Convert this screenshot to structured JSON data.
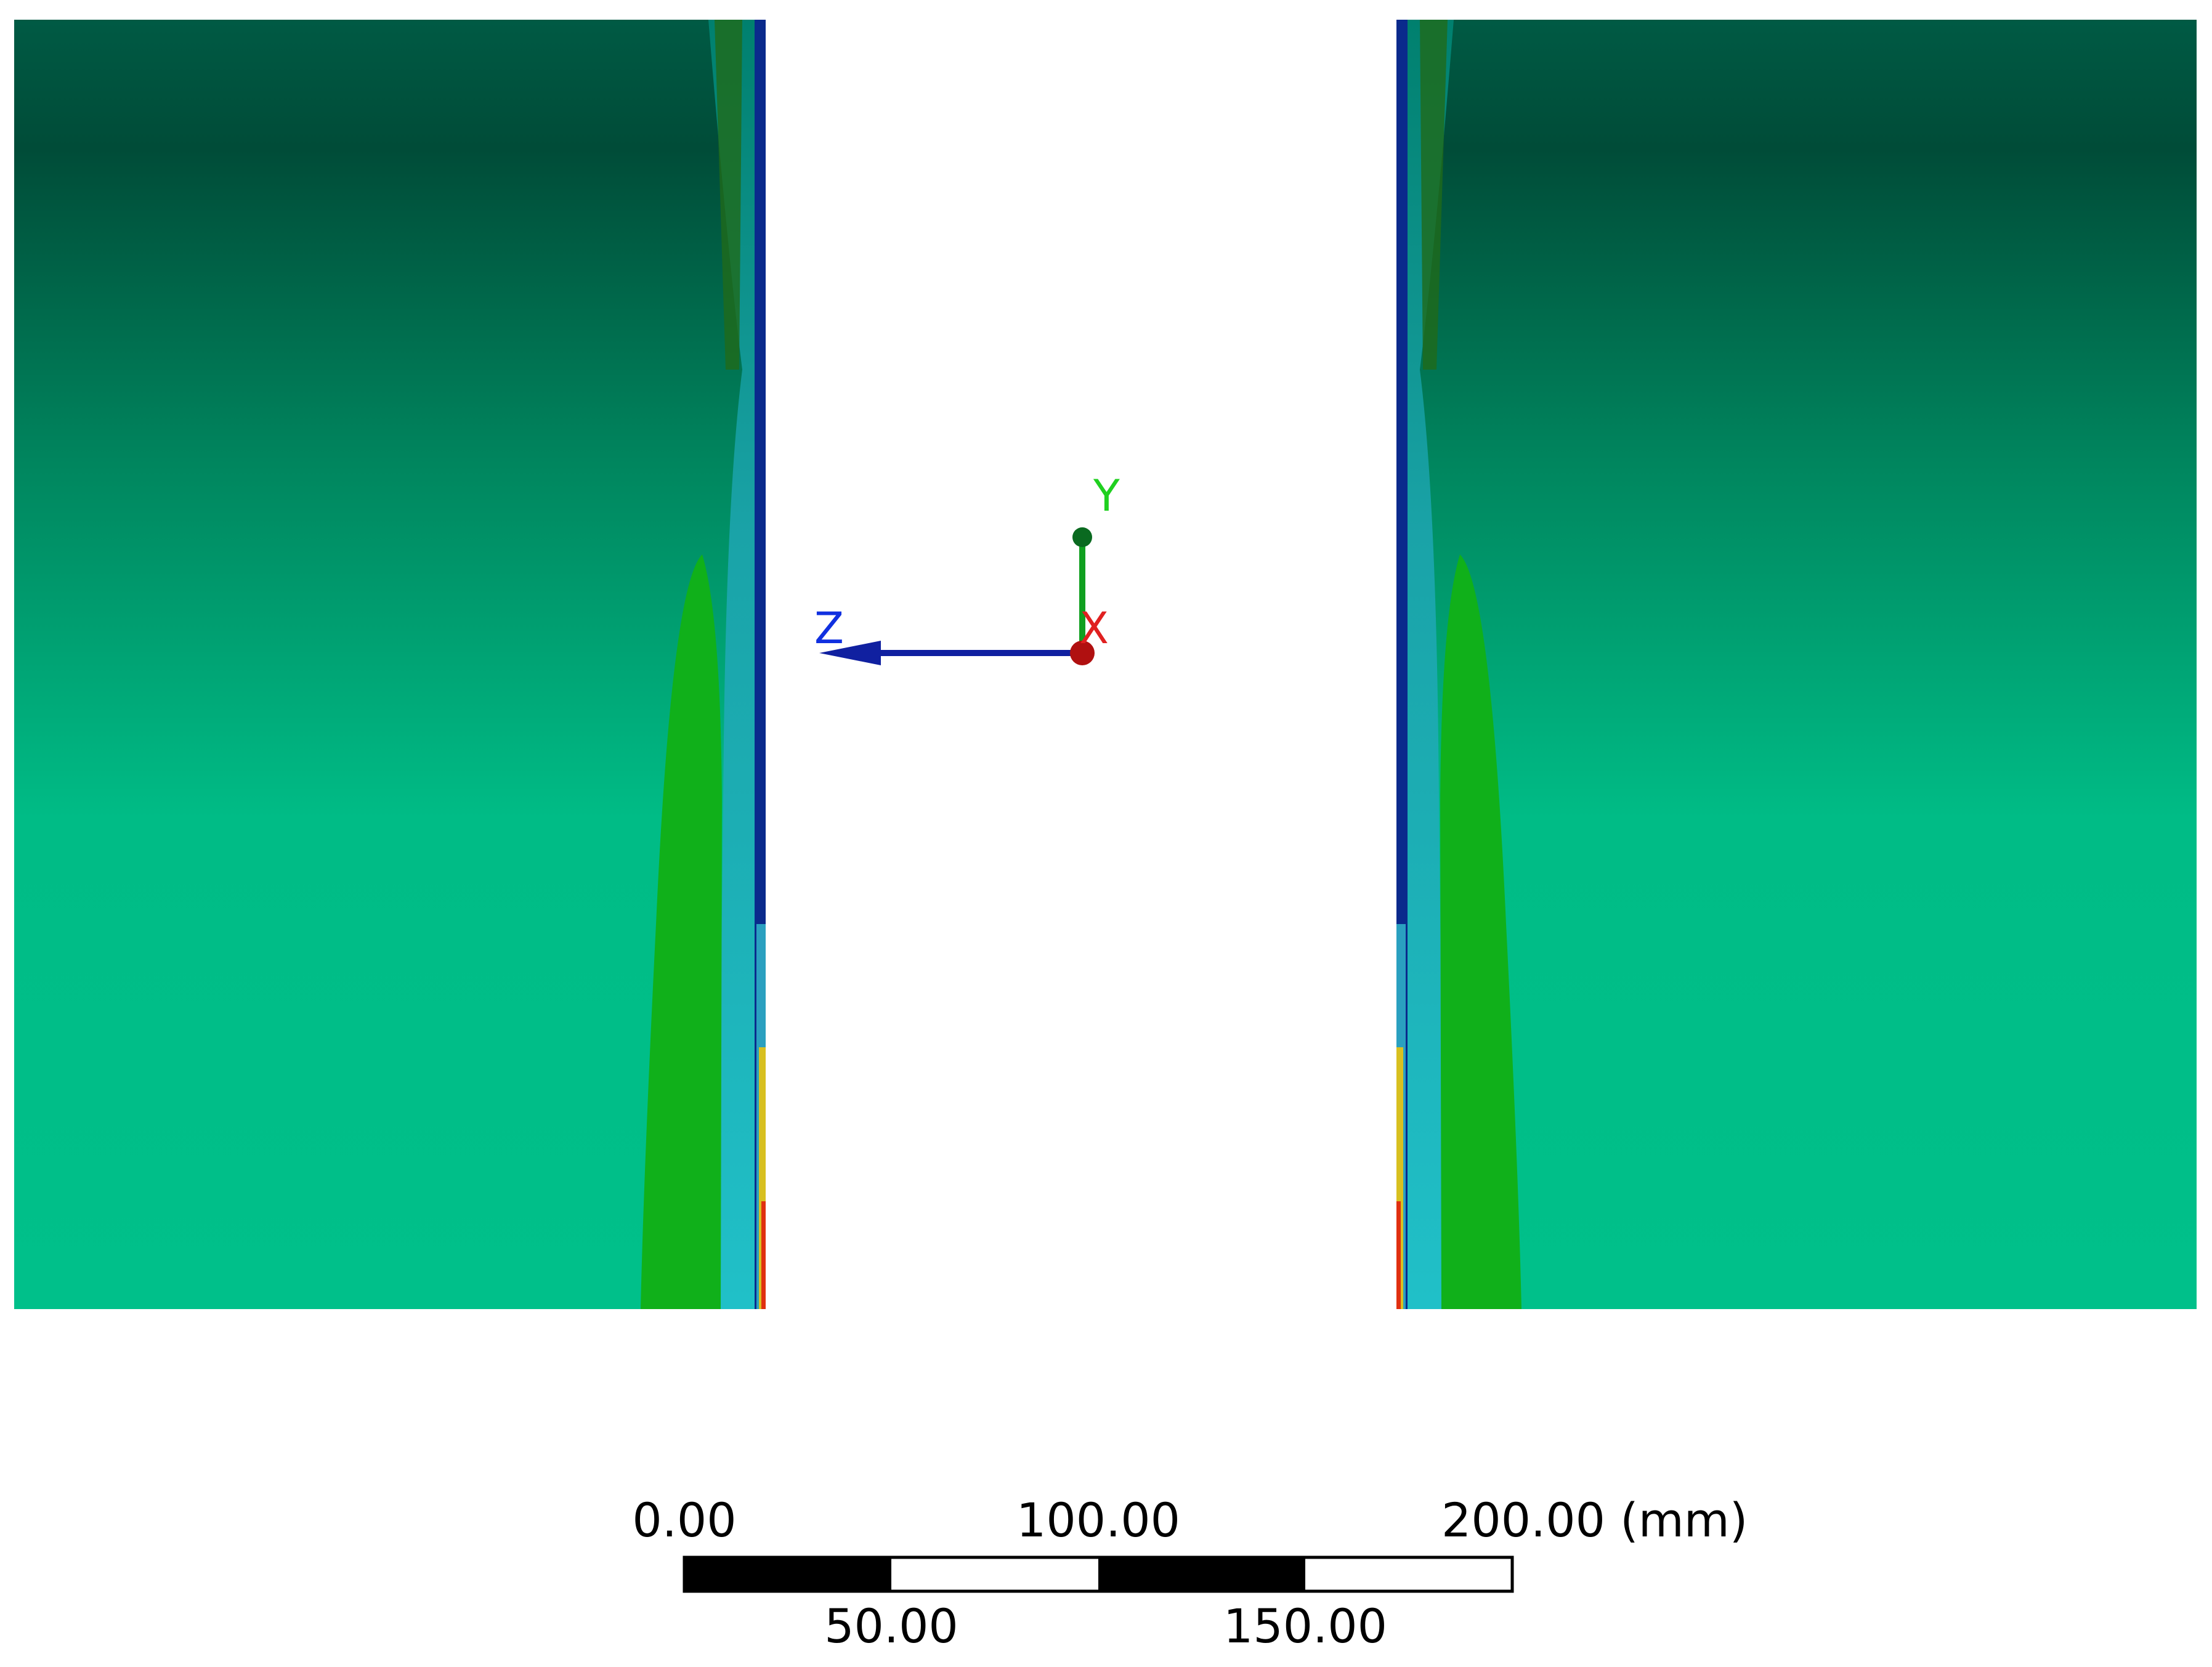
{
  "triad": {
    "y_label": "Y",
    "z_label": "Z",
    "x_label": "X"
  },
  "scale_bar": {
    "top_labels": [
      "0.00",
      "100.00",
      "200.00 (mm)"
    ],
    "bottom_labels": [
      "50.00",
      "150.00"
    ]
  }
}
